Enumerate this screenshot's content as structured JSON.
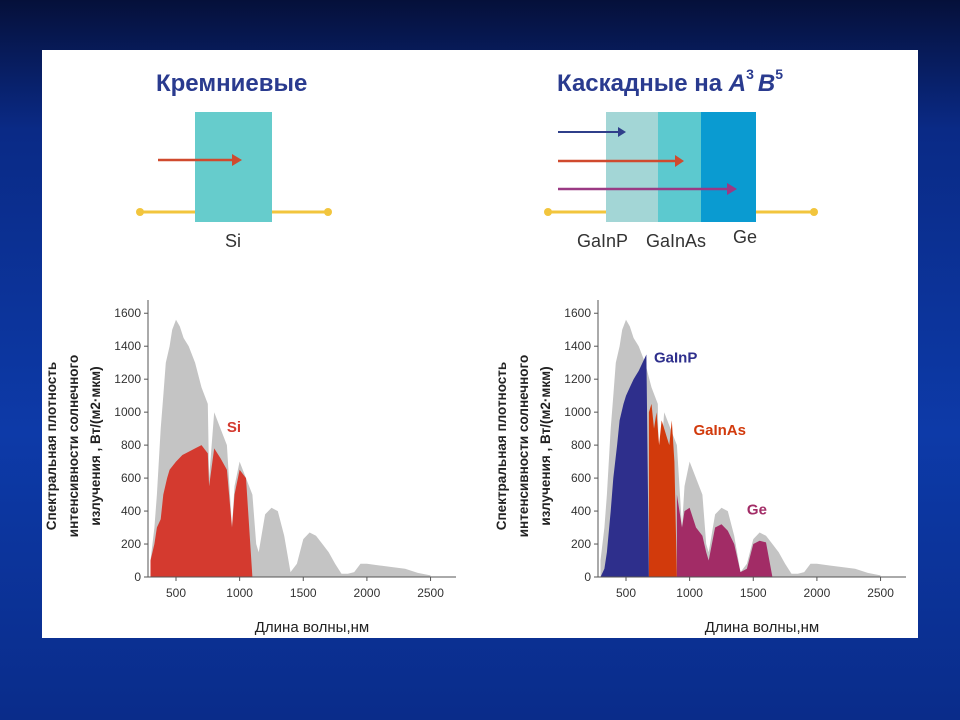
{
  "slide": {
    "left_title": "Кремниевые",
    "right_title_prefix": "Каскадные на ",
    "right_title_a": "A",
    "right_title_a_sup": "3",
    "right_title_b": "B",
    "right_title_b_sup": "5",
    "si_label": "Si",
    "layer_labels": [
      "GaInP",
      "GaInAs",
      "Ge"
    ],
    "colors": {
      "si_block": "#66cccc",
      "gainp_block": "#a3d6d6",
      "gainas_block": "#5cc9cf",
      "ge_block": "#0a9bd1",
      "wire": "#f2c53d",
      "arrow_red": "#d04a2e",
      "arrow_blue": "#2f3f8a",
      "arrow_purple": "#9a3a84",
      "spectrum_gray": "#c4c4c4",
      "si_fill": "#d43a2f",
      "gainp_fill": "#2e2f8c",
      "gainas_fill": "#d23a0c",
      "ge_fill": "#a22c66"
    }
  },
  "chart_data": [
    {
      "type": "area",
      "ylabel_lines": [
        "Спектральная плотность",
        "интенсивности солнечного",
        "излучения , Вт/(м2·мкм)"
      ],
      "xlabel": "Длина волны,нм",
      "x_ticks": [
        500,
        1000,
        1500,
        2000,
        2500
      ],
      "y_ticks": [
        0,
        200,
        400,
        600,
        800,
        1000,
        1200,
        1400,
        1600
      ],
      "xlim": [
        280,
        2700
      ],
      "ylim": [
        0,
        1650
      ],
      "series": [
        {
          "name": "",
          "role": "solar-spectrum",
          "x": [
            300,
            330,
            350,
            380,
            400,
            420,
            450,
            470,
            500,
            530,
            560,
            600,
            650,
            700,
            750,
            760,
            800,
            850,
            900,
            940,
            960,
            1000,
            1050,
            1100,
            1130,
            1150,
            1200,
            1250,
            1300,
            1350,
            1400,
            1450,
            1500,
            1550,
            1600,
            1650,
            1700,
            1750,
            1800,
            1850,
            1900,
            1950,
            2000,
            2100,
            2200,
            2300,
            2400,
            2500
          ],
          "y": [
            100,
            300,
            500,
            900,
            1100,
            1300,
            1400,
            1500,
            1560,
            1520,
            1450,
            1400,
            1300,
            1150,
            1050,
            600,
            1000,
            900,
            800,
            300,
            550,
            700,
            600,
            500,
            200,
            150,
            380,
            420,
            400,
            250,
            30,
            80,
            230,
            270,
            250,
            200,
            150,
            80,
            20,
            20,
            30,
            80,
            80,
            70,
            60,
            50,
            25,
            10
          ]
        },
        {
          "name": "Si",
          "role": "si-absorbed",
          "x": [
            300,
            330,
            350,
            380,
            400,
            430,
            450,
            500,
            550,
            600,
            650,
            700,
            750,
            760,
            800,
            850,
            900,
            940,
            960,
            1000,
            1050,
            1100
          ],
          "y": [
            100,
            200,
            300,
            350,
            500,
            600,
            650,
            700,
            740,
            760,
            780,
            800,
            750,
            550,
            780,
            720,
            650,
            300,
            500,
            650,
            600,
            0
          ]
        }
      ]
    },
    {
      "type": "area",
      "ylabel_lines": [
        "Спектральная плотность",
        "интенсивности солнечного",
        "излучения , Вт/(м2·мкм)"
      ],
      "xlabel": "Длина волны,нм",
      "x_ticks": [
        500,
        1000,
        1500,
        2000,
        2500
      ],
      "y_ticks": [
        0,
        200,
        400,
        600,
        800,
        1000,
        1200,
        1400,
        1600
      ],
      "xlim": [
        280,
        2700
      ],
      "ylim": [
        0,
        1650
      ],
      "series": [
        {
          "name": "",
          "role": "solar-spectrum",
          "x": [
            300,
            330,
            350,
            380,
            400,
            420,
            450,
            470,
            500,
            530,
            560,
            600,
            650,
            700,
            750,
            760,
            800,
            850,
            900,
            940,
            960,
            1000,
            1050,
            1100,
            1130,
            1150,
            1200,
            1250,
            1300,
            1350,
            1400,
            1450,
            1500,
            1550,
            1600,
            1650,
            1700,
            1750,
            1800,
            1850,
            1900,
            1950,
            2000,
            2100,
            2200,
            2300,
            2400,
            2500
          ],
          "y": [
            100,
            300,
            500,
            900,
            1100,
            1300,
            1400,
            1500,
            1560,
            1520,
            1450,
            1400,
            1300,
            1150,
            1050,
            600,
            1000,
            900,
            800,
            300,
            550,
            700,
            600,
            500,
            200,
            150,
            380,
            420,
            400,
            250,
            30,
            80,
            230,
            270,
            250,
            200,
            150,
            80,
            20,
            20,
            30,
            80,
            80,
            70,
            60,
            50,
            25,
            10
          ]
        },
        {
          "name": "GaInP",
          "role": "gainp-absorbed",
          "x": [
            300,
            330,
            350,
            380,
            400,
            430,
            450,
            480,
            500,
            530,
            560,
            600,
            630,
            660,
            680
          ],
          "y": [
            0,
            50,
            150,
            400,
            600,
            800,
            950,
            1050,
            1100,
            1150,
            1200,
            1250,
            1300,
            1350,
            0
          ]
        },
        {
          "name": "GaInAs",
          "role": "gainas-absorbed",
          "x": [
            680,
            700,
            720,
            740,
            760,
            780,
            800,
            820,
            840,
            860,
            880,
            900
          ],
          "y": [
            1000,
            1050,
            900,
            1000,
            800,
            950,
            900,
            850,
            800,
            950,
            700,
            0
          ]
        },
        {
          "name": "Ge",
          "role": "ge-absorbed",
          "x": [
            900,
            940,
            960,
            1000,
            1050,
            1100,
            1130,
            1150,
            1200,
            1250,
            1300,
            1350,
            1400,
            1450,
            1500,
            1550,
            1600,
            1650
          ],
          "y": [
            500,
            300,
            400,
            420,
            300,
            250,
            150,
            100,
            300,
            320,
            280,
            200,
            30,
            50,
            200,
            220,
            210,
            0
          ]
        }
      ]
    }
  ]
}
